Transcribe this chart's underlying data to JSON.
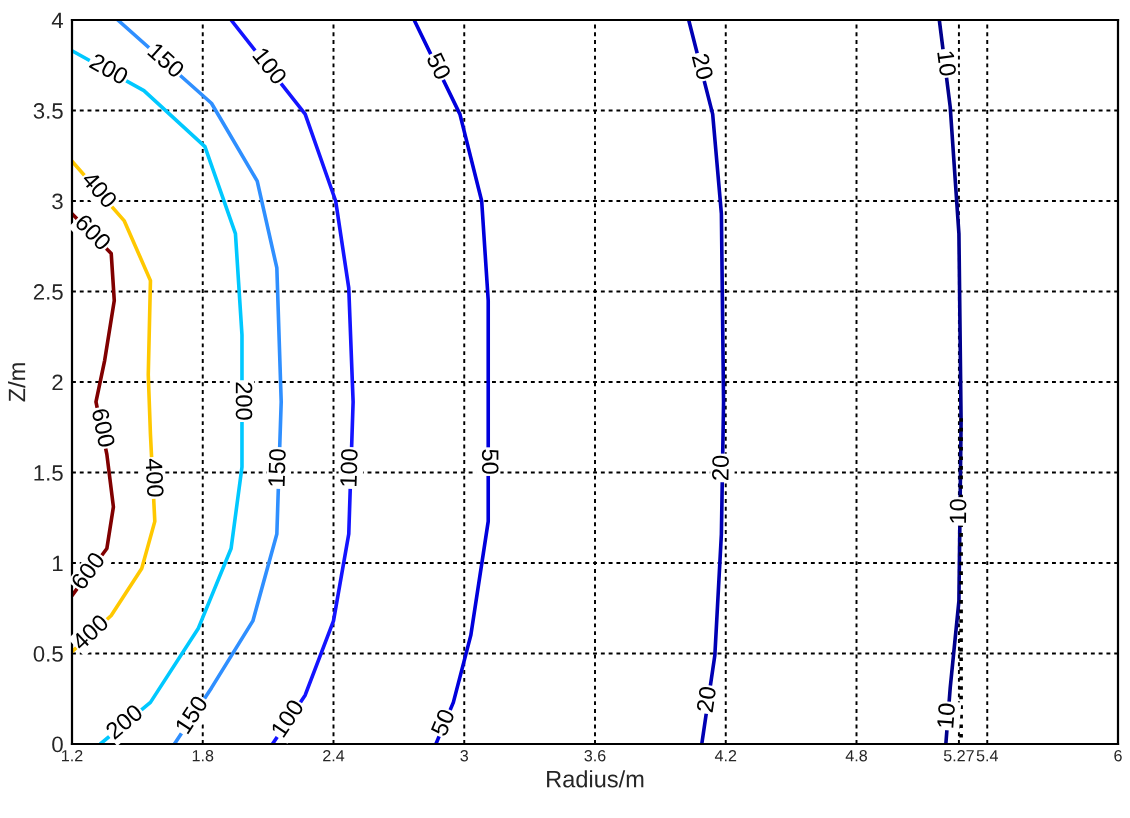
{
  "chart_data": {
    "type": "line",
    "xlabel": "Radius/m",
    "ylabel": "Z/m",
    "xlim": [
      1.2,
      6
    ],
    "ylim": [
      0,
      4
    ],
    "xticks": [
      1.2,
      1.8,
      2.4,
      3,
      3.6,
      4.2,
      4.8,
      {
        "value": 5.27,
        "label": "5.27"
      },
      5.4,
      6
    ],
    "yticks": [
      0,
      0.5,
      1,
      1.5,
      2,
      2.5,
      3,
      3.5,
      4
    ],
    "grid": true,
    "legend": false,
    "line_style": "solid",
    "marker": "none",
    "series": [
      {
        "name": "600",
        "color": "#800000",
        "x": [
          1.2,
          1.38,
          1.394,
          1.35,
          1.31,
          1.36,
          1.39,
          1.36,
          1.2
        ],
        "values": [
          2.93,
          2.71,
          2.45,
          2.12,
          1.89,
          1.6,
          1.31,
          1.08,
          0.82
        ]
      },
      {
        "name": "400",
        "color": "#ffc800",
        "x": [
          1.2,
          1.44,
          1.56,
          1.55,
          1.56,
          1.58,
          1.52,
          1.38,
          1.2
        ],
        "values": [
          3.22,
          2.89,
          2.56,
          2.04,
          1.71,
          1.23,
          0.97,
          0.71,
          0.51
        ]
      },
      {
        "name": "200",
        "color": "#00c8ff",
        "x": [
          1.2,
          1.53,
          1.81,
          1.95,
          1.98,
          1.98,
          1.93,
          1.78,
          1.56,
          1.33
        ],
        "values": [
          3.83,
          3.61,
          3.3,
          2.82,
          2.26,
          1.53,
          1.08,
          0.64,
          0.23,
          0.0
        ]
      },
      {
        "name": "150",
        "color": "#2f8fff",
        "x": [
          1.41,
          1.84,
          2.05,
          2.14,
          2.16,
          2.14,
          2.03,
          1.84,
          1.67
        ],
        "values": [
          4.0,
          3.54,
          3.11,
          2.63,
          1.89,
          1.16,
          0.68,
          0.31,
          0.0
        ]
      },
      {
        "name": "100",
        "color": "#1414ff",
        "x": [
          1.93,
          2.27,
          2.41,
          2.47,
          2.49,
          2.47,
          2.4,
          2.27,
          2.12
        ],
        "values": [
          4.0,
          3.48,
          3.0,
          2.52,
          1.89,
          1.16,
          0.68,
          0.27,
          0.0
        ]
      },
      {
        "name": "50",
        "color": "#0000dc",
        "x": [
          2.77,
          2.98,
          3.08,
          3.11,
          3.11,
          3.11,
          3.03,
          2.95,
          2.87
        ],
        "values": [
          4.0,
          3.48,
          3.0,
          2.45,
          1.89,
          1.23,
          0.6,
          0.23,
          0.0
        ]
      },
      {
        "name": "20",
        "color": "#0000b4",
        "x": [
          4.03,
          4.14,
          4.18,
          4.19,
          4.18,
          4.15,
          4.09
        ],
        "values": [
          4.0,
          3.48,
          2.93,
          1.89,
          1.16,
          0.49,
          0.0
        ]
      },
      {
        "name": "10",
        "color": "#00008c",
        "x": [
          5.18,
          5.23,
          5.27,
          5.28,
          5.27,
          5.23,
          5.21
        ],
        "values": [
          4.0,
          3.52,
          2.82,
          1.78,
          0.79,
          0.31,
          0.0
        ]
      },
      {
        "color": "#000000",
        "line_style": "dotted",
        "x": [
          5.28,
          5.28
        ],
        "values": [
          1.8,
          0.0
        ]
      }
    ]
  }
}
